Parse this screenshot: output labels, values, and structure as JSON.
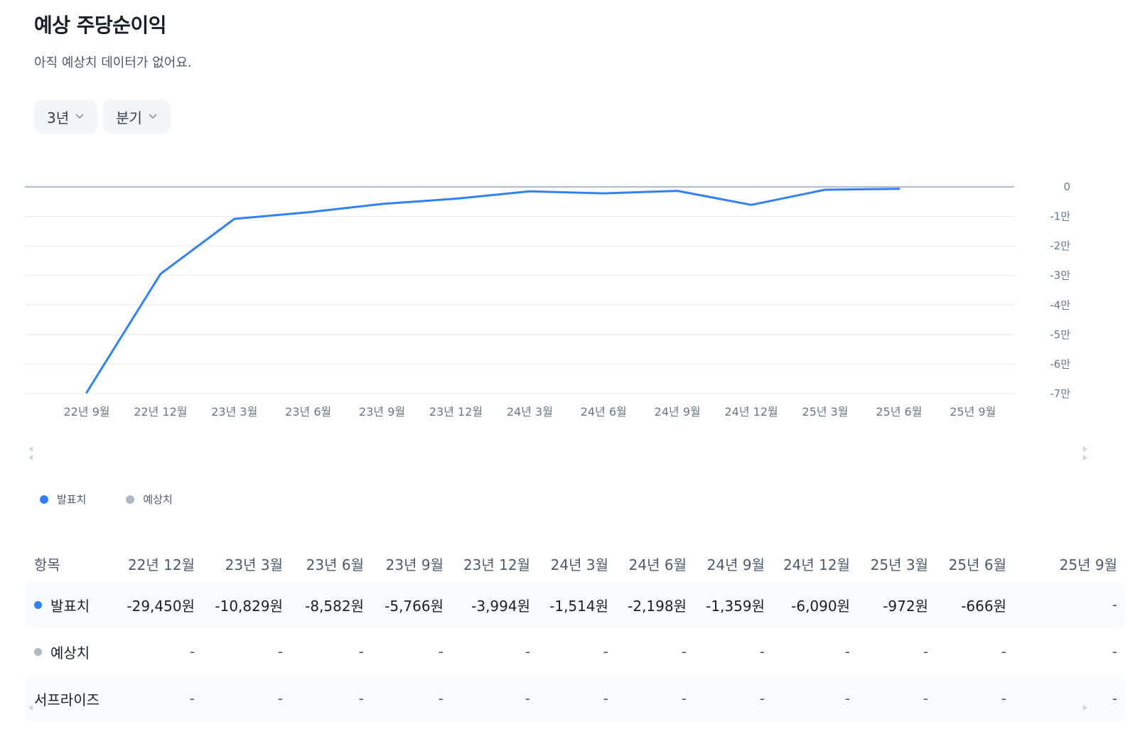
{
  "header": {
    "title": "예상 주당순이익",
    "subtitle": "아직 예상치 데이터가 없어요."
  },
  "filters": {
    "period": "3년",
    "interval": "분기"
  },
  "colors": {
    "actual": "#3182f6",
    "estimate": "#b0b8c1",
    "grid": "#e5e8eb",
    "zero": "#8b95a1"
  },
  "icons": {
    "dropdown": "chevron-down-icon",
    "scroll_left": "chevron-left-icon",
    "scroll_right": "chevron-right-icon"
  },
  "chart_data": {
    "type": "line",
    "x": [
      "22년 9월",
      "22년 12월",
      "23년 3월",
      "23년 6월",
      "23년 9월",
      "23년 12월",
      "24년 3월",
      "24년 6월",
      "24년 9월",
      "24년 12월",
      "25년 3월",
      "25년 6월",
      "25년 9월"
    ],
    "series": [
      {
        "name": "발표치",
        "values": [
          -69600,
          -29450,
          -10829,
          -8582,
          -5766,
          -3994,
          -1514,
          -2198,
          -1359,
          -6090,
          -972,
          -666,
          null
        ]
      },
      {
        "name": "예상치",
        "values": [
          null,
          null,
          null,
          null,
          null,
          null,
          null,
          null,
          null,
          null,
          null,
          null,
          null
        ]
      }
    ],
    "y_ticks": [
      "0",
      "-1만",
      "-2만",
      "-3만",
      "-4만",
      "-5만",
      "-6만",
      "-7만"
    ],
    "y_tick_values": [
      0,
      -10000,
      -20000,
      -30000,
      -40000,
      -50000,
      -60000,
      -70000
    ],
    "ylim": [
      -70000,
      0
    ],
    "y_axis_side": "right",
    "grid": true,
    "legend_position": "bottom-left"
  },
  "table": {
    "header_label": "항목",
    "columns": [
      "22년 12월",
      "23년 3월",
      "23년 6월",
      "23년 9월",
      "23년 12월",
      "24년 3월",
      "24년 6월",
      "24년 9월",
      "24년 12월",
      "25년 3월",
      "25년 6월",
      "25년 9월"
    ],
    "rows": [
      {
        "label": "발표치",
        "dot": "actual",
        "values": [
          "-29,450원",
          "-10,829원",
          "-8,582원",
          "-5,766원",
          "-3,994원",
          "-1,514원",
          "-2,198원",
          "-1,359원",
          "-6,090원",
          "-972원",
          "-666원",
          "-"
        ]
      },
      {
        "label": "예상치",
        "dot": "estimate",
        "values": [
          "-",
          "-",
          "-",
          "-",
          "-",
          "-",
          "-",
          "-",
          "-",
          "-",
          "-",
          "-"
        ]
      },
      {
        "label": "서프라이즈",
        "dot": null,
        "values": [
          "-",
          "-",
          "-",
          "-",
          "-",
          "-",
          "-",
          "-",
          "-",
          "-",
          "-",
          "-"
        ]
      }
    ]
  }
}
